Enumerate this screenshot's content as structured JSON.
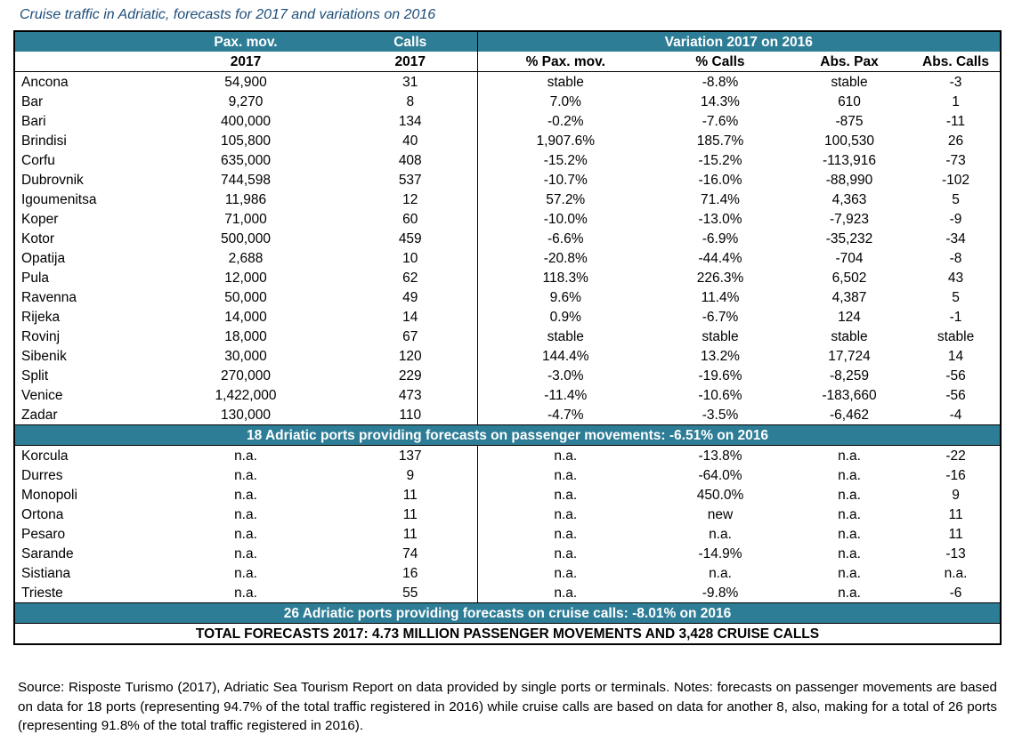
{
  "caption": "Cruise traffic in Adriatic, forecasts for 2017 and variations on 2016",
  "headers": {
    "pax_mov": "Pax. mov.",
    "calls": "Calls",
    "variation": "Variation 2017 on 2016",
    "year_pax": "2017",
    "year_calls": "2017",
    "pct_pax": "% Pax. mov.",
    "pct_calls": "% Calls",
    "abs_pax": "Abs. Pax",
    "abs_calls": "Abs. Calls"
  },
  "group1": [
    {
      "port": "Ancona",
      "pax": "54,900",
      "calls": "31",
      "pct_pax": "stable",
      "pct_calls": "-8.8%",
      "abs_pax": "stable",
      "abs_calls": "-3"
    },
    {
      "port": "Bar",
      "pax": "9,270",
      "calls": "8",
      "pct_pax": "7.0%",
      "pct_calls": "14.3%",
      "abs_pax": "610",
      "abs_calls": "1"
    },
    {
      "port": "Bari",
      "pax": "400,000",
      "calls": "134",
      "pct_pax": "-0.2%",
      "pct_calls": "-7.6%",
      "abs_pax": "-875",
      "abs_calls": "-11"
    },
    {
      "port": "Brindisi",
      "pax": "105,800",
      "calls": "40",
      "pct_pax": "1,907.6%",
      "pct_calls": "185.7%",
      "abs_pax": "100,530",
      "abs_calls": "26"
    },
    {
      "port": "Corfu",
      "pax": "635,000",
      "calls": "408",
      "pct_pax": "-15.2%",
      "pct_calls": "-15.2%",
      "abs_pax": "-113,916",
      "abs_calls": "-73"
    },
    {
      "port": "Dubrovnik",
      "pax": "744,598",
      "calls": "537",
      "pct_pax": "-10.7%",
      "pct_calls": "-16.0%",
      "abs_pax": "-88,990",
      "abs_calls": "-102"
    },
    {
      "port": "Igoumenitsa",
      "pax": "11,986",
      "calls": "12",
      "pct_pax": "57.2%",
      "pct_calls": "71.4%",
      "abs_pax": "4,363",
      "abs_calls": "5"
    },
    {
      "port": "Koper",
      "pax": "71,000",
      "calls": "60",
      "pct_pax": "-10.0%",
      "pct_calls": "-13.0%",
      "abs_pax": "-7,923",
      "abs_calls": "-9"
    },
    {
      "port": "Kotor",
      "pax": "500,000",
      "calls": "459",
      "pct_pax": "-6.6%",
      "pct_calls": "-6.9%",
      "abs_pax": "-35,232",
      "abs_calls": "-34"
    },
    {
      "port": "Opatija",
      "pax": "2,688",
      "calls": "10",
      "pct_pax": "-20.8%",
      "pct_calls": "-44.4%",
      "abs_pax": "-704",
      "abs_calls": "-8"
    },
    {
      "port": "Pula",
      "pax": "12,000",
      "calls": "62",
      "pct_pax": "118.3%",
      "pct_calls": "226.3%",
      "abs_pax": "6,502",
      "abs_calls": "43"
    },
    {
      "port": "Ravenna",
      "pax": "50,000",
      "calls": "49",
      "pct_pax": "9.6%",
      "pct_calls": "11.4%",
      "abs_pax": "4,387",
      "abs_calls": "5"
    },
    {
      "port": "Rijeka",
      "pax": "14,000",
      "calls": "14",
      "pct_pax": "0.9%",
      "pct_calls": "-6.7%",
      "abs_pax": "124",
      "abs_calls": "-1"
    },
    {
      "port": "Rovinj",
      "pax": "18,000",
      "calls": "67",
      "pct_pax": "stable",
      "pct_calls": "stable",
      "abs_pax": "stable",
      "abs_calls": "stable"
    },
    {
      "port": "Sibenik",
      "pax": "30,000",
      "calls": "120",
      "pct_pax": "144.4%",
      "pct_calls": "13.2%",
      "abs_pax": "17,724",
      "abs_calls": "14"
    },
    {
      "port": "Split",
      "pax": "270,000",
      "calls": "229",
      "pct_pax": "-3.0%",
      "pct_calls": "-19.6%",
      "abs_pax": "-8,259",
      "abs_calls": "-56"
    },
    {
      "port": "Venice",
      "pax": "1,422,000",
      "calls": "473",
      "pct_pax": "-11.4%",
      "pct_calls": "-10.6%",
      "abs_pax": "-183,660",
      "abs_calls": "-56"
    },
    {
      "port": "Zadar",
      "pax": "130,000",
      "calls": "110",
      "pct_pax": "-4.7%",
      "pct_calls": "-3.5%",
      "abs_pax": "-6,462",
      "abs_calls": "-4"
    }
  ],
  "band1": "18 Adriatic ports providing forecasts on passenger movements: -6.51% on 2016",
  "group2": [
    {
      "port": "Korcula",
      "pax": "n.a.",
      "calls": "137",
      "pct_pax": "n.a.",
      "pct_calls": "-13.8%",
      "abs_pax": "n.a.",
      "abs_calls": "-22"
    },
    {
      "port": "Durres",
      "pax": "n.a.",
      "calls": "9",
      "pct_pax": "n.a.",
      "pct_calls": "-64.0%",
      "abs_pax": "n.a.",
      "abs_calls": "-16"
    },
    {
      "port": "Monopoli",
      "pax": "n.a.",
      "calls": "11",
      "pct_pax": "n.a.",
      "pct_calls": "450.0%",
      "abs_pax": "n.a.",
      "abs_calls": "9"
    },
    {
      "port": "Ortona",
      "pax": "n.a.",
      "calls": "11",
      "pct_pax": "n.a.",
      "pct_calls": "new",
      "abs_pax": "n.a.",
      "abs_calls": "11"
    },
    {
      "port": "Pesaro",
      "pax": "n.a.",
      "calls": "11",
      "pct_pax": "n.a.",
      "pct_calls": "n.a.",
      "abs_pax": "n.a.",
      "abs_calls": "11"
    },
    {
      "port": "Sarande",
      "pax": "n.a.",
      "calls": "74",
      "pct_pax": "n.a.",
      "pct_calls": "-14.9%",
      "abs_pax": "n.a.",
      "abs_calls": "-13"
    },
    {
      "port": "Sistiana",
      "pax": "n.a.",
      "calls": "16",
      "pct_pax": "n.a.",
      "pct_calls": "n.a.",
      "abs_pax": "n.a.",
      "abs_calls": "n.a."
    },
    {
      "port": "Trieste",
      "pax": "n.a.",
      "calls": "55",
      "pct_pax": "n.a.",
      "pct_calls": "-9.8%",
      "abs_pax": "n.a.",
      "abs_calls": "-6"
    }
  ],
  "band2": "26 Adriatic ports providing forecasts on cruise calls: -8.01% on 2016",
  "total": "TOTAL FORECASTS 2017: 4.73 MILLION PASSENGER MOVEMENTS AND 3,428 CRUISE CALLS",
  "source": "Source: Risposte Turismo (2017), Adriatic Sea Tourism Report on data provided by single ports or terminals. Notes: forecasts on passenger movements are based on data for 18 ports (representing 94.7% of the total traffic registered in 2016) while cruise calls are based on data for another 8, also, making for a total of 26 ports (representing 91.8% of the total traffic registered in 2016)."
}
